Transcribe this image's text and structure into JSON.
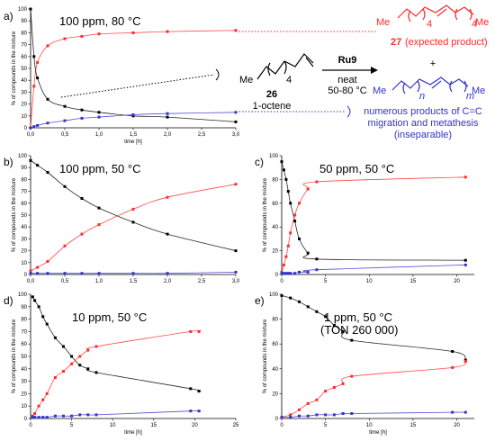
{
  "scheme": {
    "reagent": "Ru9",
    "conditions_1": "neat",
    "conditions_2": "50-80 °C",
    "substrate_number": "26",
    "substrate_name": "1-octene",
    "substrate_me": "Me",
    "substrate_sub": "4",
    "product_number": "27",
    "product_label": "(expected product)",
    "product_me_left": "Me",
    "product_me_right": "Me",
    "product_sub_left": "4",
    "product_sub_right": "4",
    "plus": "+",
    "side_me_left": "Me",
    "side_me_right": "Me",
    "side_sub_n": "n",
    "side_sub_m": "m",
    "side_text_1": "numerous products of C=C",
    "side_text_2": "migration and metathesis",
    "side_text_3": "(inseparable)",
    "colors": {
      "red": "#ff2a2a",
      "blue": "#3333cc",
      "black": "#000000"
    }
  },
  "chart_data": [
    {
      "type": "scatter",
      "panel": "a)",
      "condition": "100 ppm, 80 °C",
      "xlabel": "time [h]",
      "ylabel": "% of compounds in the mixture",
      "xlim": [
        0,
        3.0
      ],
      "ylim": [
        0,
        100
      ],
      "xticks": [
        "0,0",
        "0,5",
        "1,0",
        "1,5",
        "2,0",
        "2,5",
        "3,0"
      ],
      "yticks": [
        "0",
        "10",
        "20",
        "30",
        "40",
        "50",
        "60",
        "70",
        "80",
        "90",
        "100"
      ],
      "series": [
        {
          "color": "#ff2a2a",
          "x": [
            0.0,
            0.05,
            0.1,
            0.25,
            0.5,
            0.75,
            1.0,
            1.5,
            2.0,
            3.0
          ],
          "y": [
            0,
            35,
            55,
            69,
            75,
            77,
            79,
            80,
            81,
            82
          ]
        },
        {
          "color": "#000000",
          "x": [
            0.0,
            0.05,
            0.1,
            0.25,
            0.5,
            0.75,
            1.0,
            1.5,
            2.0,
            3.0
          ],
          "y": [
            100,
            60,
            42,
            24,
            18,
            15,
            13,
            10,
            9,
            5
          ]
        },
        {
          "color": "#3333cc",
          "x": [
            0.0,
            0.05,
            0.1,
            0.25,
            0.5,
            0.75,
            1.0,
            1.5,
            2.0,
            3.0
          ],
          "y": [
            0,
            1,
            2,
            4,
            6,
            8,
            9,
            11,
            12,
            13
          ]
        }
      ]
    },
    {
      "type": "scatter",
      "panel": "b)",
      "condition": "100 ppm, 50 °C",
      "xlabel": "",
      "ylabel": "% of compounds in the mixture",
      "xlim": [
        0,
        3.0
      ],
      "ylim": [
        0,
        100
      ],
      "xticks": [
        "0,0",
        "0,5",
        "1,0",
        "1,5",
        "2,0",
        "2,5",
        "3,0"
      ],
      "yticks": [
        "0",
        "10",
        "20",
        "30",
        "40",
        "50",
        "60",
        "70",
        "80",
        "90",
        "100"
      ],
      "series": [
        {
          "color": "#000000",
          "x": [
            0.0,
            0.1,
            0.25,
            0.5,
            0.75,
            1.0,
            1.5,
            2.0,
            3.0
          ],
          "y": [
            96,
            92,
            86,
            74,
            64,
            56,
            44,
            34,
            20
          ]
        },
        {
          "color": "#ff2a2a",
          "x": [
            0.0,
            0.1,
            0.25,
            0.5,
            0.75,
            1.0,
            1.5,
            2.0,
            3.0
          ],
          "y": [
            3,
            6,
            11,
            24,
            34,
            42,
            55,
            65,
            76
          ]
        },
        {
          "color": "#3333cc",
          "x": [
            0.0,
            0.1,
            0.25,
            0.5,
            0.75,
            1.0,
            1.5,
            2.0,
            3.0
          ],
          "y": [
            1,
            1,
            1,
            1,
            1,
            1,
            1,
            1,
            2
          ]
        }
      ]
    },
    {
      "type": "scatter",
      "panel": "c)",
      "condition": "50 ppm, 50 °C",
      "xlabel": "",
      "ylabel": "% of compounds in the mixture",
      "xlim": [
        0,
        22
      ],
      "ylim": [
        0,
        100
      ],
      "xticks": [
        "0",
        "5",
        "10",
        "15",
        "20"
      ],
      "yticks": [
        "0",
        "20",
        "40",
        "60",
        "80",
        "100"
      ],
      "series": [
        {
          "color": "#000000",
          "x": [
            0.0,
            0.25,
            0.5,
            0.75,
            1.0,
            1.5,
            2.0,
            3.0,
            4.0,
            21.0
          ],
          "y": [
            95,
            88,
            80,
            70,
            60,
            45,
            30,
            18,
            13,
            12
          ]
        },
        {
          "color": "#ff2a2a",
          "x": [
            0.0,
            0.25,
            0.5,
            0.75,
            1.0,
            1.5,
            2.0,
            3.0,
            4.0,
            21.0
          ],
          "y": [
            2,
            8,
            15,
            24,
            35,
            50,
            60,
            72,
            78,
            82
          ]
        },
        {
          "color": "#3333cc",
          "x": [
            0.0,
            0.25,
            0.5,
            0.75,
            1.0,
            1.5,
            2.0,
            3.0,
            4.0,
            21.0
          ],
          "y": [
            1,
            1,
            1,
            1,
            1,
            1,
            2,
            2,
            4,
            8
          ]
        }
      ]
    },
    {
      "type": "scatter",
      "panel": "d)",
      "condition": "10 ppm, 50 °C",
      "xlabel": "time [h]",
      "ylabel": "% of compounds in the mixture",
      "xlim": [
        0,
        25
      ],
      "ylim": [
        0,
        100
      ],
      "xticks": [
        "0",
        "5",
        "10",
        "15",
        "20",
        "25"
      ],
      "yticks": [
        "0",
        "10",
        "20",
        "30",
        "40",
        "50",
        "60",
        "70",
        "80",
        "90",
        "100"
      ],
      "series": [
        {
          "color": "#000000",
          "x": [
            0.25,
            0.5,
            1.0,
            1.5,
            2.0,
            3.0,
            4.0,
            5.0,
            6.0,
            7.0,
            8.0,
            19.5,
            20.5
          ],
          "y": [
            98,
            95,
            90,
            82,
            76,
            65,
            58,
            50,
            43,
            40,
            37,
            24,
            22
          ]
        },
        {
          "color": "#ff2a2a",
          "x": [
            0.25,
            0.5,
            1.0,
            1.5,
            2.0,
            3.0,
            4.0,
            5.0,
            6.0,
            7.0,
            8.0,
            19.5,
            20.5
          ],
          "y": [
            2,
            4,
            10,
            15,
            20,
            33,
            38,
            44,
            50,
            55,
            58,
            70,
            70
          ]
        },
        {
          "color": "#3333cc",
          "x": [
            0.25,
            0.5,
            1.0,
            1.5,
            2.0,
            3.0,
            4.0,
            5.0,
            6.0,
            7.0,
            8.0,
            19.5,
            20.5
          ],
          "y": [
            1,
            1,
            1,
            1,
            1,
            2,
            2,
            2,
            3,
            3,
            3,
            6,
            6
          ]
        }
      ]
    },
    {
      "type": "scatter",
      "panel": "e)",
      "condition": "1 ppm, 50 °C",
      "condition_2": "(TON 260 000)",
      "xlabel": "time [h]",
      "ylabel": "% of compounds in the mixture",
      "xlim": [
        0,
        22
      ],
      "ylim": [
        0,
        100
      ],
      "xticks": [
        "0",
        "5",
        "10",
        "15",
        "20"
      ],
      "yticks": [
        "0",
        "20",
        "40",
        "60",
        "80",
        "100"
      ],
      "series": [
        {
          "color": "#000000",
          "x": [
            0.0,
            1.0,
            2.0,
            3.0,
            4.0,
            5.0,
            6.0,
            7.0,
            8.0,
            19.5,
            21.0
          ],
          "y": [
            99,
            97,
            94,
            90,
            86,
            82,
            75,
            70,
            63,
            54,
            47
          ]
        },
        {
          "color": "#ff2a2a",
          "x": [
            0.0,
            1.0,
            2.0,
            3.0,
            4.0,
            5.0,
            6.0,
            7.0,
            8.0,
            19.5,
            21.0
          ],
          "y": [
            1,
            3,
            7,
            12,
            15,
            22,
            25,
            28,
            34,
            41,
            46
          ]
        },
        {
          "color": "#3333cc",
          "x": [
            0.0,
            1.0,
            2.0,
            3.0,
            4.0,
            5.0,
            6.0,
            7.0,
            8.0,
            19.5,
            21.0
          ],
          "y": [
            1,
            1,
            2,
            2,
            3,
            3,
            3,
            4,
            4,
            5,
            5
          ]
        }
      ]
    }
  ]
}
